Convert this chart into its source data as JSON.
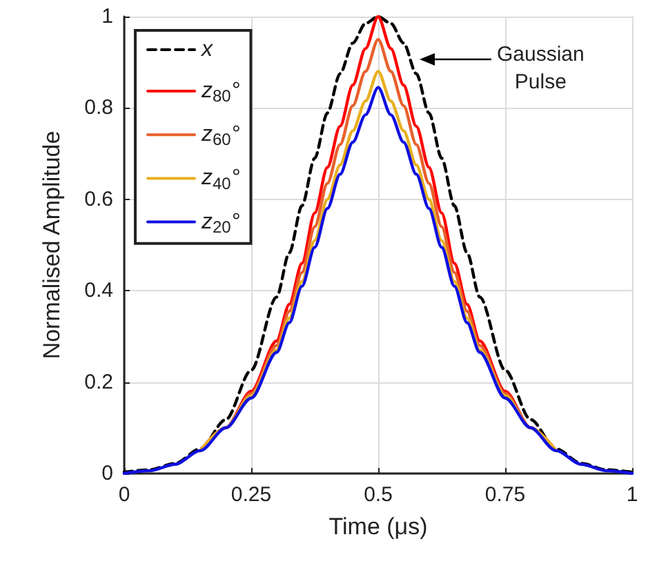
{
  "chart_data": {
    "type": "line",
    "xlabel": "Time (μs)",
    "ylabel": "Normalised Amplitude",
    "x": [
      0,
      0.05,
      0.1,
      0.15,
      0.2,
      0.25,
      0.3,
      0.325,
      0.35,
      0.375,
      0.4,
      0.425,
      0.45,
      0.475,
      0.5,
      0.525,
      0.55,
      0.575,
      0.6,
      0.625,
      0.65,
      0.675,
      0.7,
      0.75,
      0.8,
      0.85,
      0.9,
      0.95,
      1
    ],
    "series": [
      {
        "name": "x",
        "color": "#000000",
        "line_style": "dashed",
        "values": [
          0.003,
          0.008,
          0.022,
          0.054,
          0.118,
          0.226,
          0.386,
          0.483,
          0.586,
          0.69,
          0.789,
          0.875,
          0.942,
          0.985,
          1,
          0.985,
          0.942,
          0.875,
          0.789,
          0.69,
          0.586,
          0.483,
          0.386,
          0.226,
          0.118,
          0.054,
          0.022,
          0.008,
          0.003
        ]
      },
      {
        "name": "z$_{80}$°",
        "color": "#ff0000",
        "line_style": "solid",
        "values": [
          null,
          null,
          null,
          0.05,
          0.1,
          0.18,
          0.29,
          0.37,
          0.46,
          0.57,
          0.67,
          0.76,
          0.85,
          0.93,
          1,
          0.93,
          0.85,
          0.76,
          0.67,
          0.57,
          0.46,
          0.37,
          0.29,
          0.18,
          0.1,
          0.05,
          null,
          null,
          null
        ]
      },
      {
        "name": "z$_{60}$°",
        "color": "#e8602c",
        "line_style": "solid",
        "values": [
          null,
          null,
          null,
          0.05,
          0.1,
          0.175,
          0.28,
          0.355,
          0.44,
          0.54,
          0.635,
          0.72,
          0.805,
          0.88,
          0.95,
          0.88,
          0.805,
          0.72,
          0.635,
          0.54,
          0.44,
          0.355,
          0.28,
          0.175,
          0.1,
          0.05,
          null,
          null,
          null
        ]
      },
      {
        "name": "z$_{40}$°",
        "color": "#e8b020",
        "line_style": "solid",
        "values": [
          null,
          null,
          null,
          0.05,
          0.1,
          0.17,
          0.27,
          0.34,
          0.42,
          0.51,
          0.6,
          0.675,
          0.75,
          0.815,
          0.88,
          0.815,
          0.75,
          0.675,
          0.6,
          0.51,
          0.42,
          0.34,
          0.27,
          0.17,
          0.1,
          0.05,
          null,
          null,
          null
        ]
      },
      {
        "name": "z$_{20}$°",
        "color": "#1010e0",
        "line_style": "solid",
        "values": [
          0,
          0.006,
          0.02,
          0.05,
          0.1,
          0.165,
          0.265,
          0.33,
          0.41,
          0.495,
          0.58,
          0.655,
          0.725,
          0.785,
          0.845,
          0.785,
          0.725,
          0.655,
          0.58,
          0.495,
          0.41,
          0.33,
          0.265,
          0.165,
          0.1,
          0.05,
          0.02,
          0.006,
          0
        ]
      }
    ],
    "xlim": [
      0,
      1
    ],
    "xticks": [
      0,
      0.25,
      0.5,
      0.75,
      1
    ],
    "ylim": [
      0,
      1
    ],
    "yticks": [
      0,
      0.2,
      0.4,
      0.6,
      0.8,
      1
    ],
    "grid": true,
    "legend": "top left",
    "marker": "none",
    "annotations": [
      "Gaussian\nPulse"
    ]
  }
}
